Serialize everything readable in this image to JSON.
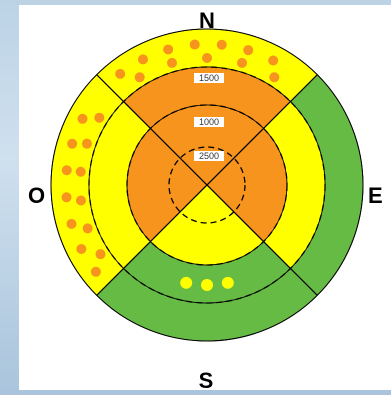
{
  "diagram": {
    "compass": {
      "north": "N",
      "south": "S",
      "east": "E",
      "west": "O"
    },
    "ring_labels": [
      "1500",
      "1000",
      "2500"
    ],
    "colors": {
      "orange": "#f7941d",
      "yellow": "#ffff00",
      "green": "#66bb44",
      "dot": "#f7941d",
      "dot_on_green": "#ffff00",
      "line": "#000000",
      "background": "#ffffff"
    }
  }
}
